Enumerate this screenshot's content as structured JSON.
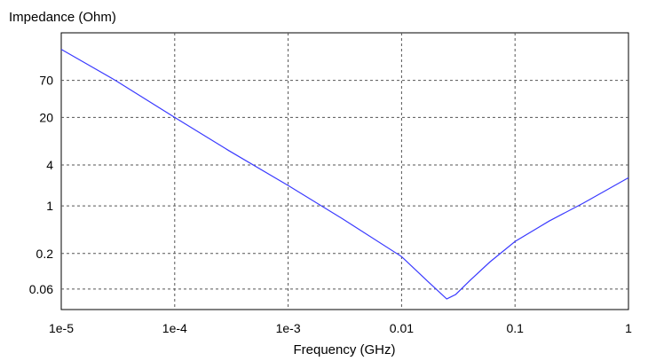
{
  "chart_data": {
    "type": "line",
    "title": "",
    "xlabel": "Frequency (GHz)",
    "ylabel": "Impedance (Ohm)",
    "x_scale": "log",
    "y_scale": "log",
    "xlim": [
      1e-05,
      1
    ],
    "ylim": [
      0.03,
      350
    ],
    "grid": true,
    "legend": "none",
    "x_ticks": [
      {
        "value": 1e-05,
        "label": "1e-5"
      },
      {
        "value": 0.0001,
        "label": "1e-4"
      },
      {
        "value": 0.001,
        "label": "1e-3"
      },
      {
        "value": 0.01,
        "label": "0.01"
      },
      {
        "value": 0.1,
        "label": "0.1"
      },
      {
        "value": 1,
        "label": "1"
      }
    ],
    "y_ticks": [
      {
        "value": 0.06,
        "label": "0.06"
      },
      {
        "value": 0.2,
        "label": "0.2"
      },
      {
        "value": 1,
        "label": "1"
      },
      {
        "value": 4,
        "label": "4"
      },
      {
        "value": 20,
        "label": "20"
      },
      {
        "value": 70,
        "label": "70"
      }
    ],
    "line_color": "#3a3aff",
    "series": [
      {
        "x": [
          1e-05,
          3e-05,
          0.0001,
          0.0003,
          0.001,
          0.003,
          0.01,
          0.017,
          0.025,
          0.03,
          0.04,
          0.06,
          0.1,
          0.2,
          0.4,
          1
        ],
        "y": [
          200,
          70,
          20,
          6.5,
          2.0,
          0.65,
          0.18,
          0.078,
          0.043,
          0.05,
          0.08,
          0.15,
          0.3,
          0.6,
          1.1,
          2.6
        ]
      }
    ]
  }
}
